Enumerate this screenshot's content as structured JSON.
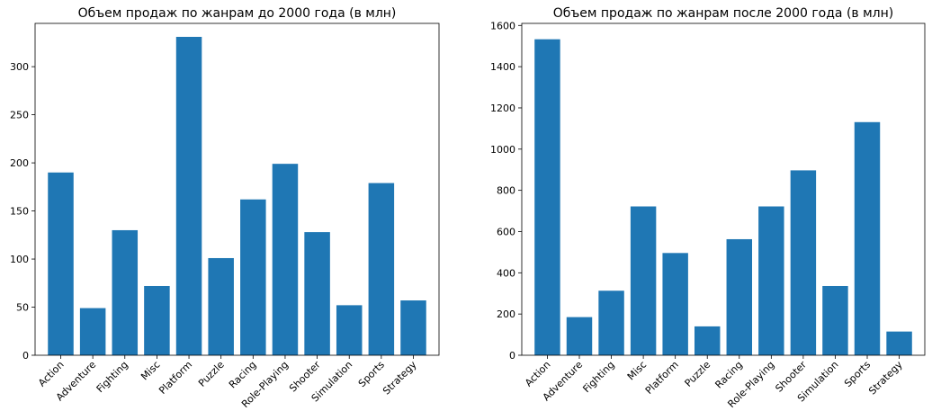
{
  "chart_data": [
    {
      "type": "bar",
      "title": "Объем продаж по жанрам до 2000 года (в млн)",
      "categories": [
        "Action",
        "Adventure",
        "Fighting",
        "Misc",
        "Platform",
        "Puzzle",
        "Racing",
        "Role-Playing",
        "Shooter",
        "Simulation",
        "Sports",
        "Strategy"
      ],
      "values": [
        190,
        49,
        130,
        72,
        331,
        101,
        162,
        199,
        128,
        52,
        179,
        57
      ],
      "ylim": [
        0,
        345
      ],
      "yticks": [
        0,
        50,
        100,
        150,
        200,
        250,
        300
      ],
      "xlabel": "",
      "ylabel": "",
      "grid": false,
      "color": "#1f77b4"
    },
    {
      "type": "bar",
      "title": "Объем продаж по жанрам после 2000 года (в млн)",
      "categories": [
        "Action",
        "Adventure",
        "Fighting",
        "Misc",
        "Platform",
        "Puzzle",
        "Racing",
        "Role-Playing",
        "Shooter",
        "Simulation",
        "Sports",
        "Strategy"
      ],
      "values": [
        1533,
        185,
        313,
        722,
        496,
        140,
        563,
        722,
        897,
        336,
        1131,
        115
      ],
      "ylim": [
        0,
        1610
      ],
      "yticks": [
        0,
        200,
        400,
        600,
        800,
        1000,
        1200,
        1400,
        1600
      ],
      "xlabel": "",
      "ylabel": "",
      "grid": false,
      "color": "#1f77b4"
    }
  ]
}
